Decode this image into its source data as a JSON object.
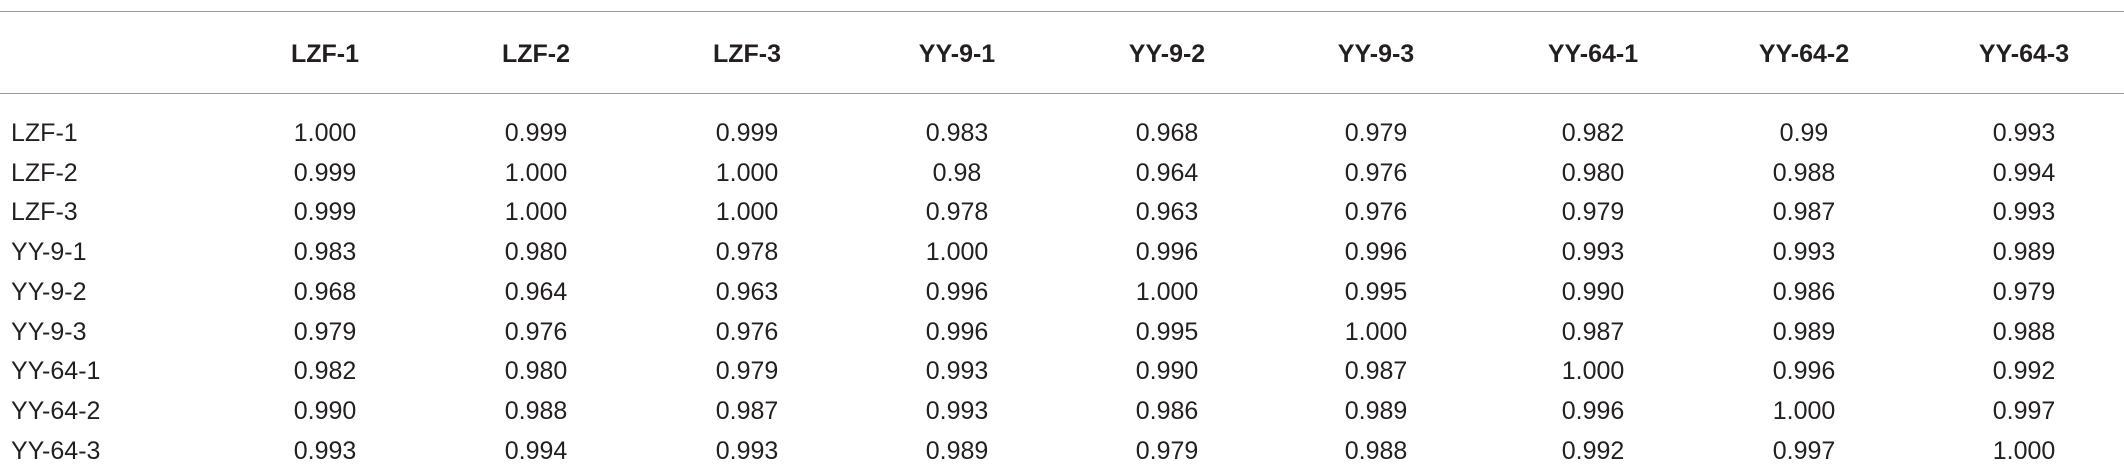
{
  "table": {
    "columns": [
      "LZF-1",
      "LZF-2",
      "LZF-3",
      "YY-9-1",
      "YY-9-2",
      "YY-9-3",
      "YY-64-1",
      "YY-64-2",
      "YY-64-3"
    ],
    "rows": [
      {
        "label": "LZF-1",
        "cells": [
          "1.000",
          "0.999",
          "0.999",
          "0.983",
          "0.968",
          "0.979",
          "0.982",
          "0.99",
          "0.993"
        ]
      },
      {
        "label": "LZF-2",
        "cells": [
          "0.999",
          "1.000",
          "1.000",
          "0.98",
          "0.964",
          "0.976",
          "0.980",
          "0.988",
          "0.994"
        ]
      },
      {
        "label": "LZF-3",
        "cells": [
          "0.999",
          "1.000",
          "1.000",
          "0.978",
          "0.963",
          "0.976",
          "0.979",
          "0.987",
          "0.993"
        ]
      },
      {
        "label": "YY-9-1",
        "cells": [
          "0.983",
          "0.980",
          "0.978",
          "1.000",
          "0.996",
          "0.996",
          "0.993",
          "0.993",
          "0.989"
        ]
      },
      {
        "label": "YY-9-2",
        "cells": [
          "0.968",
          "0.964",
          "0.963",
          "0.996",
          "1.000",
          "0.995",
          "0.990",
          "0.986",
          "0.979"
        ]
      },
      {
        "label": "YY-9-3",
        "cells": [
          "0.979",
          "0.976",
          "0.976",
          "0.996",
          "0.995",
          "1.000",
          "0.987",
          "0.989",
          "0.988"
        ]
      },
      {
        "label": "YY-64-1",
        "cells": [
          "0.982",
          "0.980",
          "0.979",
          "0.993",
          "0.990",
          "0.987",
          "1.000",
          "0.996",
          "0.992"
        ]
      },
      {
        "label": "YY-64-2",
        "cells": [
          "0.990",
          "0.988",
          "0.987",
          "0.993",
          "0.986",
          "0.989",
          "0.996",
          "1.000",
          "0.997"
        ]
      },
      {
        "label": "YY-64-3",
        "cells": [
          "0.993",
          "0.994",
          "0.993",
          "0.989",
          "0.979",
          "0.988",
          "0.992",
          "0.997",
          "1.000"
        ]
      }
    ]
  }
}
